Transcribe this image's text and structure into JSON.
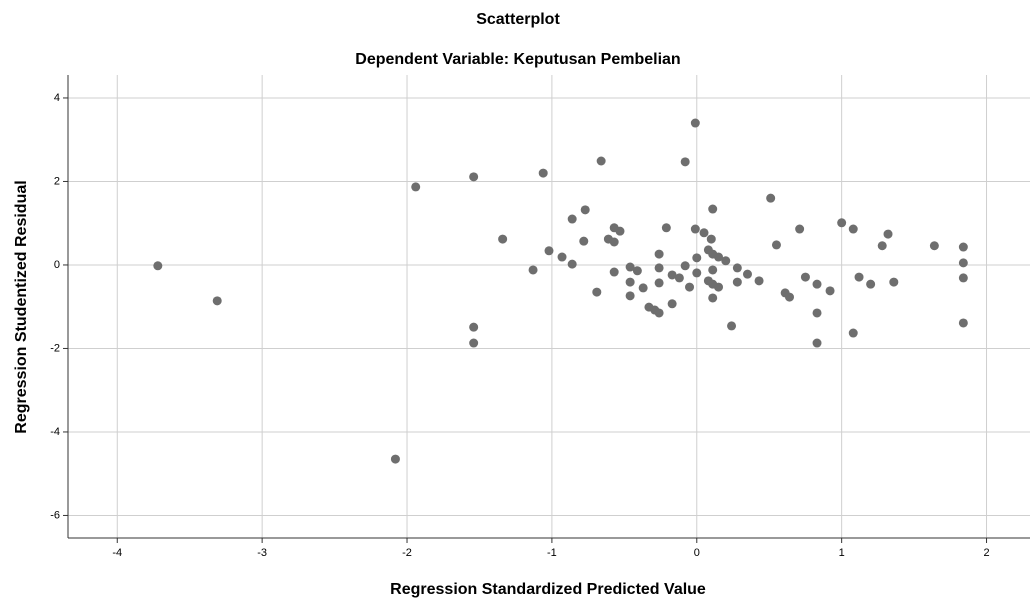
{
  "chart_data": {
    "type": "scatter",
    "title": "Scatterplot",
    "subtitle": "Dependent Variable: Keputusan Pembelian",
    "x_label": "Regression Standardized Predicted Value",
    "y_label": "Regression Studentized Residual",
    "color": "#6e6e6e",
    "grid": true,
    "xlim": [
      -4.34,
      2.3
    ],
    "ylim": [
      -6.54,
      4.55
    ],
    "xticks": [
      -4,
      -3,
      -2,
      -1,
      0,
      1,
      2
    ],
    "yticks": [
      -6,
      -4,
      -2,
      0,
      2,
      4
    ],
    "x": [
      -3.72,
      -3.31,
      -1.94,
      -1.54,
      -1.54,
      -1.54,
      -2.08,
      -1.34,
      -1.13,
      -1.06,
      -1.02,
      -0.93,
      -0.86,
      -0.86,
      -0.77,
      -0.78,
      -0.69,
      -0.66,
      -0.61,
      -0.57,
      -0.57,
      -0.53,
      -0.57,
      -0.46,
      -0.46,
      -0.46,
      -0.41,
      -0.37,
      -0.33,
      -0.29,
      -0.26,
      -0.26,
      -0.26,
      -0.21,
      -0.26,
      -0.17,
      -0.17,
      -0.12,
      -0.08,
      -0.08,
      -0.05,
      -0.01,
      -0.01,
      0.0,
      0.0,
      0.05,
      0.08,
      0.08,
      0.11,
      0.1,
      0.11,
      0.11,
      0.11,
      0.11,
      0.15,
      0.15,
      0.2,
      0.24,
      0.28,
      0.28,
      0.35,
      0.43,
      0.51,
      0.55,
      0.61,
      0.64,
      0.71,
      0.75,
      0.83,
      0.83,
      0.83,
      0.92,
      1.0,
      1.08,
      1.08,
      1.12,
      1.2,
      1.28,
      1.32,
      1.36,
      1.64,
      1.84,
      1.84,
      1.84,
      1.84
    ],
    "values": [
      -0.02,
      -0.86,
      1.87,
      2.11,
      -1.49,
      -1.87,
      -4.65,
      0.62,
      -0.12,
      2.2,
      0.34,
      0.19,
      0.02,
      1.1,
      1.32,
      0.57,
      -0.65,
      2.49,
      0.62,
      0.55,
      0.89,
      0.81,
      -0.17,
      -0.05,
      -0.41,
      -0.74,
      -0.14,
      -0.55,
      -1.01,
      -1.08,
      -1.15,
      0.26,
      -0.07,
      0.89,
      -0.43,
      -0.93,
      -0.24,
      -0.31,
      -0.02,
      2.47,
      -0.53,
      3.4,
      0.86,
      0.17,
      -0.19,
      0.77,
      0.36,
      -0.38,
      1.34,
      0.62,
      0.26,
      -0.12,
      -0.46,
      -0.79,
      0.19,
      -0.53,
      0.1,
      -1.46,
      -0.07,
      -0.41,
      -0.22,
      -0.38,
      1.6,
      0.48,
      -0.67,
      -0.77,
      0.86,
      -0.29,
      -0.46,
      -1.15,
      -1.87,
      -0.62,
      1.01,
      0.86,
      -1.63,
      -0.29,
      -0.46,
      0.46,
      0.74,
      -0.41,
      0.46,
      0.43,
      0.05,
      -0.31,
      -1.39
    ]
  }
}
